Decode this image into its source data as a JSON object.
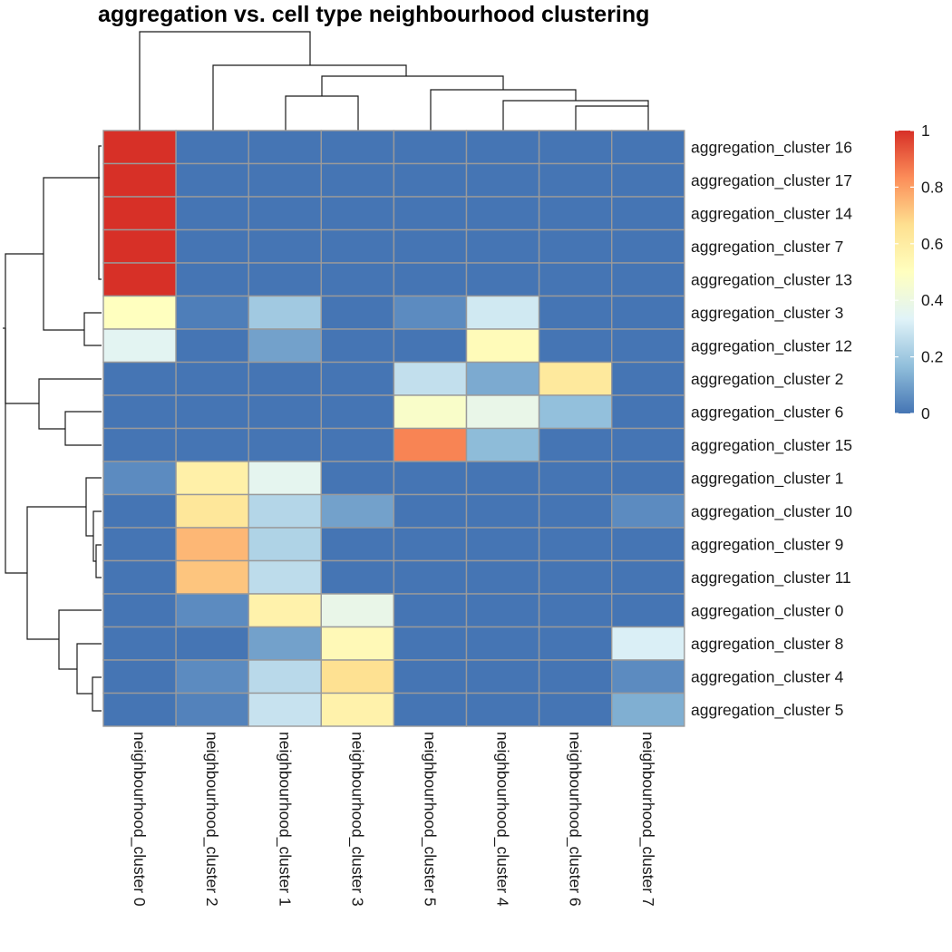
{
  "title": "aggregation vs. cell type neighbourhood clustering",
  "chart_data": {
    "type": "heatmap",
    "title": "aggregation vs. cell type neighbourhood clustering",
    "columns": [
      "neighbourhood_cluster 0",
      "neighbourhood_cluster 2",
      "neighbourhood_cluster 1",
      "neighbourhood_cluster 3",
      "neighbourhood_cluster 5",
      "neighbourhood_cluster 4",
      "neighbourhood_cluster 6",
      "neighbourhood_cluster 7"
    ],
    "rows": [
      "aggregation_cluster 16",
      "aggregation_cluster 17",
      "aggregation_cluster 14",
      "aggregation_cluster 7",
      "aggregation_cluster 13",
      "aggregation_cluster 3",
      "aggregation_cluster 12",
      "aggregation_cluster 2",
      "aggregation_cluster 6",
      "aggregation_cluster 15",
      "aggregation_cluster 1",
      "aggregation_cluster 10",
      "aggregation_cluster 9",
      "aggregation_cluster 11",
      "aggregation_cluster 0",
      "aggregation_cluster 8",
      "aggregation_cluster 4",
      "aggregation_cluster 5"
    ],
    "values": [
      [
        1.0,
        0,
        0,
        0,
        0,
        0,
        0,
        0
      ],
      [
        1.0,
        0,
        0,
        0,
        0,
        0,
        0,
        0
      ],
      [
        1.0,
        0,
        0,
        0,
        0,
        0,
        0,
        0
      ],
      [
        1.0,
        0,
        0,
        0,
        0,
        0,
        0,
        0
      ],
      [
        1.0,
        0,
        0,
        0,
        0,
        0,
        0,
        0
      ],
      [
        0.5,
        0.02,
        0.2,
        0,
        0.05,
        0.3,
        0,
        0
      ],
      [
        0.35,
        0,
        0.1,
        0,
        0,
        0.52,
        0,
        0
      ],
      [
        0,
        0,
        0,
        0,
        0.27,
        0.12,
        0.62,
        0
      ],
      [
        0,
        0,
        0,
        0,
        0.47,
        0.38,
        0.17,
        0
      ],
      [
        0,
        0,
        0,
        0,
        0.85,
        0.16,
        0,
        0
      ],
      [
        0.05,
        0.58,
        0.36,
        0,
        0,
        0,
        0,
        0
      ],
      [
        0,
        0.63,
        0.24,
        0.1,
        0,
        0,
        0,
        0.05
      ],
      [
        0,
        0.75,
        0.23,
        0,
        0,
        0,
        0,
        0
      ],
      [
        0,
        0.72,
        0.26,
        0,
        0,
        0,
        0,
        0
      ],
      [
        0,
        0.05,
        0.57,
        0.38,
        0,
        0,
        0,
        0
      ],
      [
        0,
        0,
        0.1,
        0.53,
        0,
        0,
        0,
        0.32
      ],
      [
        0,
        0.05,
        0.25,
        0.66,
        0,
        0,
        0,
        0.05
      ],
      [
        0,
        0.03,
        0.28,
        0.57,
        0,
        0,
        0,
        0.13
      ]
    ],
    "legend": {
      "ticks": [
        "1",
        "0.8",
        "0.6",
        "0.4",
        "0.2",
        "0"
      ],
      "range": [
        0,
        1
      ]
    },
    "colorscale": [
      "#4575B4",
      "#91BFDB",
      "#E0F3F8",
      "#FFFFBF",
      "#FEE090",
      "#FC8D59",
      "#D73027"
    ]
  }
}
